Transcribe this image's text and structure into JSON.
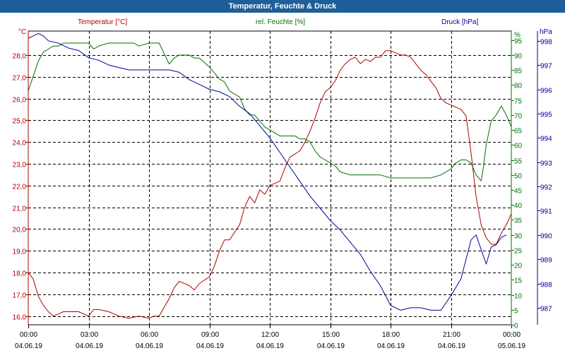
{
  "window": {
    "title": "Temperatur, Feuchte & Druck"
  },
  "chart_data": {
    "type": "line",
    "title": "Temperatur, Feuchte & Druck",
    "colors": {
      "temperature": "#b00000",
      "humidity": "#007000",
      "pressure": "#00009a",
      "title_bg": "#1e5f99"
    },
    "legend": {
      "temperature": "Temperatur [°C]",
      "humidity": "rel. Feuchte [%]",
      "pressure": "Druck [hPa]"
    },
    "units": {
      "left": "°C",
      "right1": "%",
      "right2": "hPa"
    },
    "x_range": [
      0,
      24
    ],
    "x_ticks": [
      {
        "x": 0,
        "time": "00:00",
        "date": "04.06.19"
      },
      {
        "x": 3,
        "time": "03:00",
        "date": "04.06.19"
      },
      {
        "x": 6,
        "time": "06:00",
        "date": "04.06.19"
      },
      {
        "x": 9,
        "time": "09:00",
        "date": "04.06.19"
      },
      {
        "x": 12,
        "time": "12:00",
        "date": "04.06.19"
      },
      {
        "x": 15,
        "time": "15:00",
        "date": "04.06.19"
      },
      {
        "x": 18,
        "time": "18:00",
        "date": "04.06.19"
      },
      {
        "x": 21,
        "time": "21:00",
        "date": "04.06.19"
      },
      {
        "x": 24,
        "time": "00:00",
        "date": "05.06.19"
      }
    ],
    "temperature_axis": {
      "range": [
        15.6,
        29.1
      ],
      "ticks": [
        "16,0",
        "17,0",
        "18,0",
        "19,0",
        "20,0",
        "21,0",
        "22,0",
        "23,0",
        "24,0",
        "25,0",
        "26,0",
        "27,0",
        "28,0"
      ]
    },
    "humidity_axis": {
      "range": [
        0,
        98
      ],
      "ticks": [
        "0",
        "5",
        "10",
        "15",
        "20",
        "25",
        "30",
        "35",
        "40",
        "45",
        "50",
        "55",
        "60",
        "65",
        "70",
        "75",
        "80",
        "85",
        "90",
        "95",
        "%"
      ]
    },
    "pressure_axis": {
      "range": [
        986.3,
        998.4
      ],
      "ticks": [
        "987",
        "988",
        "989",
        "990",
        "991",
        "992",
        "993",
        "994",
        "995",
        "996",
        "997",
        "998"
      ]
    },
    "series": [
      {
        "name": "Temperatur [°C]",
        "axis": "temperature",
        "points": [
          [
            0,
            18.0
          ],
          [
            0.25,
            17.7
          ],
          [
            0.5,
            16.9
          ],
          [
            0.75,
            16.5
          ],
          [
            1.0,
            16.2
          ],
          [
            1.25,
            16.0
          ],
          [
            1.5,
            16.1
          ],
          [
            1.75,
            16.2
          ],
          [
            2.0,
            16.2
          ],
          [
            2.5,
            16.2
          ],
          [
            3.0,
            16.0
          ],
          [
            3.25,
            16.3
          ],
          [
            3.5,
            16.3
          ],
          [
            4.0,
            16.2
          ],
          [
            4.5,
            16.0
          ],
          [
            5.0,
            15.9
          ],
          [
            5.25,
            15.95
          ],
          [
            5.5,
            16.0
          ],
          [
            6.0,
            15.9
          ],
          [
            6.25,
            16.0
          ],
          [
            6.5,
            16.0
          ],
          [
            7.0,
            16.8
          ],
          [
            7.25,
            17.3
          ],
          [
            7.5,
            17.6
          ],
          [
            8.0,
            17.4
          ],
          [
            8.25,
            17.2
          ],
          [
            8.5,
            17.5
          ],
          [
            9.0,
            17.8
          ],
          [
            9.25,
            18.3
          ],
          [
            9.5,
            19.0
          ],
          [
            9.75,
            19.5
          ],
          [
            10.0,
            19.5
          ],
          [
            10.5,
            20.2
          ],
          [
            10.75,
            21.0
          ],
          [
            11.0,
            21.5
          ],
          [
            11.25,
            21.2
          ],
          [
            11.5,
            21.8
          ],
          [
            11.75,
            21.6
          ],
          [
            12.0,
            22.0
          ],
          [
            12.25,
            22.1
          ],
          [
            12.5,
            22.2
          ],
          [
            12.75,
            22.8
          ],
          [
            13.0,
            23.3
          ],
          [
            13.5,
            23.6
          ],
          [
            13.75,
            24.0
          ],
          [
            14.0,
            24.5
          ],
          [
            14.25,
            25.1
          ],
          [
            14.5,
            25.8
          ],
          [
            14.75,
            26.3
          ],
          [
            15.0,
            26.5
          ],
          [
            15.25,
            26.8
          ],
          [
            15.5,
            27.3
          ],
          [
            15.75,
            27.6
          ],
          [
            16.0,
            27.8
          ],
          [
            16.25,
            27.9
          ],
          [
            16.5,
            27.6
          ],
          [
            16.75,
            27.8
          ],
          [
            17.0,
            27.7
          ],
          [
            17.25,
            27.9
          ],
          [
            17.5,
            27.9
          ],
          [
            17.75,
            28.2
          ],
          [
            18.0,
            28.2
          ],
          [
            18.25,
            28.1
          ],
          [
            18.5,
            28.0
          ],
          [
            18.75,
            28.0
          ],
          [
            19.0,
            27.9
          ],
          [
            19.25,
            27.6
          ],
          [
            19.5,
            27.3
          ],
          [
            19.75,
            27.1
          ],
          [
            20.0,
            26.8
          ],
          [
            20.25,
            26.5
          ],
          [
            20.5,
            26.0
          ],
          [
            20.75,
            25.8
          ],
          [
            21.0,
            25.7
          ],
          [
            21.25,
            25.6
          ],
          [
            21.5,
            25.5
          ],
          [
            21.75,
            25.2
          ],
          [
            22.0,
            23.5
          ],
          [
            22.25,
            21.5
          ],
          [
            22.5,
            20.2
          ],
          [
            22.75,
            19.6
          ],
          [
            23.0,
            19.3
          ],
          [
            23.25,
            19.3
          ],
          [
            23.5,
            19.8
          ],
          [
            23.75,
            20.2
          ],
          [
            24.0,
            20.7
          ]
        ]
      },
      {
        "name": "rel. Feuchte [%]",
        "axis": "humidity",
        "points": [
          [
            0,
            78
          ],
          [
            0.25,
            83
          ],
          [
            0.5,
            88
          ],
          [
            0.75,
            91
          ],
          [
            1.0,
            92
          ],
          [
            1.25,
            93
          ],
          [
            1.5,
            93
          ],
          [
            1.75,
            94
          ],
          [
            2.0,
            94
          ],
          [
            2.5,
            94
          ],
          [
            3.0,
            94
          ],
          [
            3.25,
            92
          ],
          [
            3.5,
            93
          ],
          [
            4.0,
            94
          ],
          [
            4.5,
            94
          ],
          [
            5.0,
            94
          ],
          [
            5.25,
            94
          ],
          [
            5.5,
            93
          ],
          [
            6.0,
            94
          ],
          [
            6.25,
            94
          ],
          [
            6.5,
            94
          ],
          [
            7.0,
            87
          ],
          [
            7.25,
            89
          ],
          [
            7.5,
            90
          ],
          [
            8.0,
            90
          ],
          [
            8.25,
            89
          ],
          [
            8.5,
            89
          ],
          [
            9.0,
            86
          ],
          [
            9.25,
            84
          ],
          [
            9.5,
            82
          ],
          [
            9.75,
            81
          ],
          [
            10.0,
            78
          ],
          [
            10.5,
            76
          ],
          [
            10.75,
            72
          ],
          [
            11.0,
            70
          ],
          [
            11.25,
            70
          ],
          [
            11.5,
            68
          ],
          [
            11.75,
            66
          ],
          [
            12.0,
            65
          ],
          [
            12.25,
            64
          ],
          [
            12.5,
            63
          ],
          [
            12.75,
            63
          ],
          [
            13.0,
            63
          ],
          [
            13.25,
            63
          ],
          [
            13.5,
            62
          ],
          [
            13.75,
            62
          ],
          [
            14.0,
            61
          ],
          [
            14.25,
            58
          ],
          [
            14.5,
            56
          ],
          [
            14.75,
            55
          ],
          [
            15.0,
            54
          ],
          [
            15.25,
            53
          ],
          [
            15.5,
            51
          ],
          [
            16.0,
            50
          ],
          [
            16.5,
            50
          ],
          [
            17.0,
            50
          ],
          [
            17.5,
            50
          ],
          [
            18.0,
            49
          ],
          [
            18.5,
            49
          ],
          [
            19.0,
            49
          ],
          [
            19.5,
            49
          ],
          [
            20.0,
            49
          ],
          [
            20.5,
            50
          ],
          [
            21.0,
            52
          ],
          [
            21.25,
            54
          ],
          [
            21.5,
            55
          ],
          [
            21.75,
            55
          ],
          [
            22.0,
            54
          ],
          [
            22.25,
            50
          ],
          [
            22.5,
            48
          ],
          [
            22.6,
            52
          ],
          [
            22.75,
            60
          ],
          [
            23.0,
            68
          ],
          [
            23.25,
            70
          ],
          [
            23.5,
            73
          ],
          [
            23.75,
            70
          ],
          [
            24.0,
            66
          ]
        ]
      },
      {
        "name": "Druck [hPa]",
        "axis": "pressure",
        "points": [
          [
            0,
            998.1
          ],
          [
            0.25,
            998.2
          ],
          [
            0.5,
            998.3
          ],
          [
            0.75,
            998.2
          ],
          [
            1.0,
            998.0
          ],
          [
            1.5,
            997.9
          ],
          [
            2.0,
            997.7
          ],
          [
            2.5,
            997.6
          ],
          [
            3.0,
            997.3
          ],
          [
            3.5,
            997.2
          ],
          [
            4.0,
            997.0
          ],
          [
            4.5,
            996.9
          ],
          [
            5.0,
            996.8
          ],
          [
            5.5,
            996.8
          ],
          [
            6.0,
            996.8
          ],
          [
            6.5,
            996.8
          ],
          [
            7.0,
            996.8
          ],
          [
            7.5,
            996.7
          ],
          [
            8.0,
            996.4
          ],
          [
            8.5,
            996.2
          ],
          [
            9.0,
            996.0
          ],
          [
            9.5,
            995.9
          ],
          [
            10.0,
            995.7
          ],
          [
            10.5,
            995.3
          ],
          [
            11.0,
            995.0
          ],
          [
            11.5,
            994.5
          ],
          [
            12.0,
            994.0
          ],
          [
            12.5,
            993.4
          ],
          [
            13.0,
            992.8
          ],
          [
            13.5,
            992.2
          ],
          [
            14.0,
            991.6
          ],
          [
            14.5,
            991.1
          ],
          [
            15.0,
            990.6
          ],
          [
            15.5,
            990.2
          ],
          [
            16.0,
            989.7
          ],
          [
            16.5,
            989.2
          ],
          [
            17.0,
            988.5
          ],
          [
            17.5,
            987.9
          ],
          [
            18.0,
            987.1
          ],
          [
            18.5,
            986.9
          ],
          [
            19.0,
            987.0
          ],
          [
            19.5,
            987.0
          ],
          [
            20.0,
            986.9
          ],
          [
            20.5,
            986.9
          ],
          [
            21.0,
            987.5
          ],
          [
            21.5,
            988.2
          ],
          [
            22.0,
            989.8
          ],
          [
            22.25,
            990.0
          ],
          [
            22.5,
            989.4
          ],
          [
            22.75,
            988.8
          ],
          [
            23.0,
            989.5
          ],
          [
            23.25,
            989.6
          ],
          [
            23.5,
            989.9
          ],
          [
            23.75,
            990.0
          ]
        ]
      }
    ]
  }
}
